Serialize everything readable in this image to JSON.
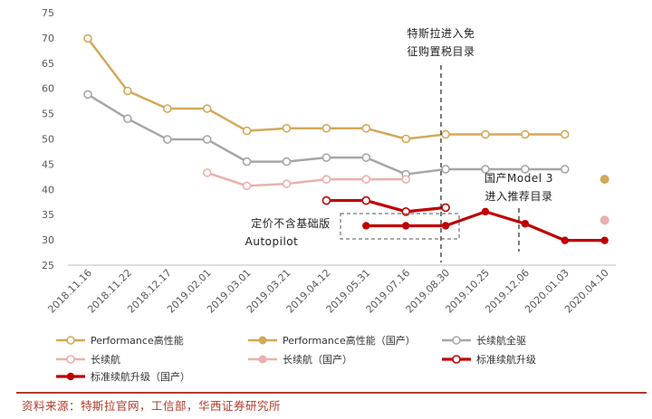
{
  "chart_data": {
    "type": "line",
    "categories": [
      "2018.11.16",
      "2018.11.22",
      "2018.12.17",
      "2019.02.01",
      "2019.03.01",
      "2019.03.21",
      "2019.04.12",
      "2019.05.31",
      "2019.07.16",
      "2019.08.30",
      "2019.10.25",
      "2019.12.06",
      "2020.01.03",
      "2020.04.10"
    ],
    "ylim": [
      25,
      75
    ],
    "yticks": [
      25,
      30,
      35,
      40,
      45,
      50,
      55,
      60,
      65,
      70,
      75
    ],
    "series": [
      {
        "name": "Performance高性能",
        "color": "#d4a859",
        "marker": "hollow",
        "values": [
          69.9,
          59.5,
          56.0,
          56.0,
          51.6,
          52.1,
          52.1,
          52.1,
          50.0,
          50.9,
          50.9,
          50.9,
          50.9,
          null
        ]
      },
      {
        "name": "Performance高性能（国产）",
        "color": "#d4a859",
        "marker": "dot-only",
        "values": [
          null,
          null,
          null,
          null,
          null,
          null,
          null,
          null,
          null,
          null,
          null,
          null,
          null,
          42.0
        ]
      },
      {
        "name": "长续航全驱",
        "color": "#a6a6a6",
        "marker": "hollow",
        "values": [
          58.8,
          54.0,
          49.9,
          49.9,
          45.5,
          45.5,
          46.3,
          46.3,
          43.0,
          44.0,
          44.0,
          44.0,
          44.0,
          null
        ]
      },
      {
        "name": "长续航",
        "color": "#eab0ae",
        "marker": "hollow",
        "values": [
          null,
          null,
          null,
          43.3,
          40.7,
          41.1,
          42.0,
          42.0,
          42.0,
          null,
          null,
          null,
          null,
          null
        ]
      },
      {
        "name": "长续航（国产）",
        "color": "#eab0ae",
        "marker": "dot-only",
        "values": [
          null,
          null,
          null,
          null,
          null,
          null,
          null,
          null,
          null,
          null,
          null,
          null,
          null,
          33.9
        ]
      },
      {
        "name": "标准续航升级",
        "color": "#c00000",
        "marker": "hollow",
        "values": [
          null,
          null,
          null,
          null,
          null,
          null,
          37.8,
          37.8,
          35.6,
          36.4,
          null,
          null,
          null,
          null
        ]
      },
      {
        "name": "标准续航升级（国产）",
        "color": "#c00000",
        "marker": "filled",
        "values": [
          null,
          null,
          null,
          null,
          null,
          null,
          null,
          32.8,
          32.8,
          32.8,
          35.6,
          33.2,
          29.9,
          29.9
        ]
      }
    ],
    "annotations": [
      {
        "text_lines": [
          "特斯拉进入免",
          "征购置税目录"
        ]
      },
      {
        "text_lines": [
          "国产Model 3",
          "进入推荐目录"
        ]
      },
      {
        "text_lines": [
          "定价不含基础版",
          "Autopilot"
        ]
      }
    ]
  },
  "source": "资料来源：特斯拉官网，工信部，华西证券研究所"
}
